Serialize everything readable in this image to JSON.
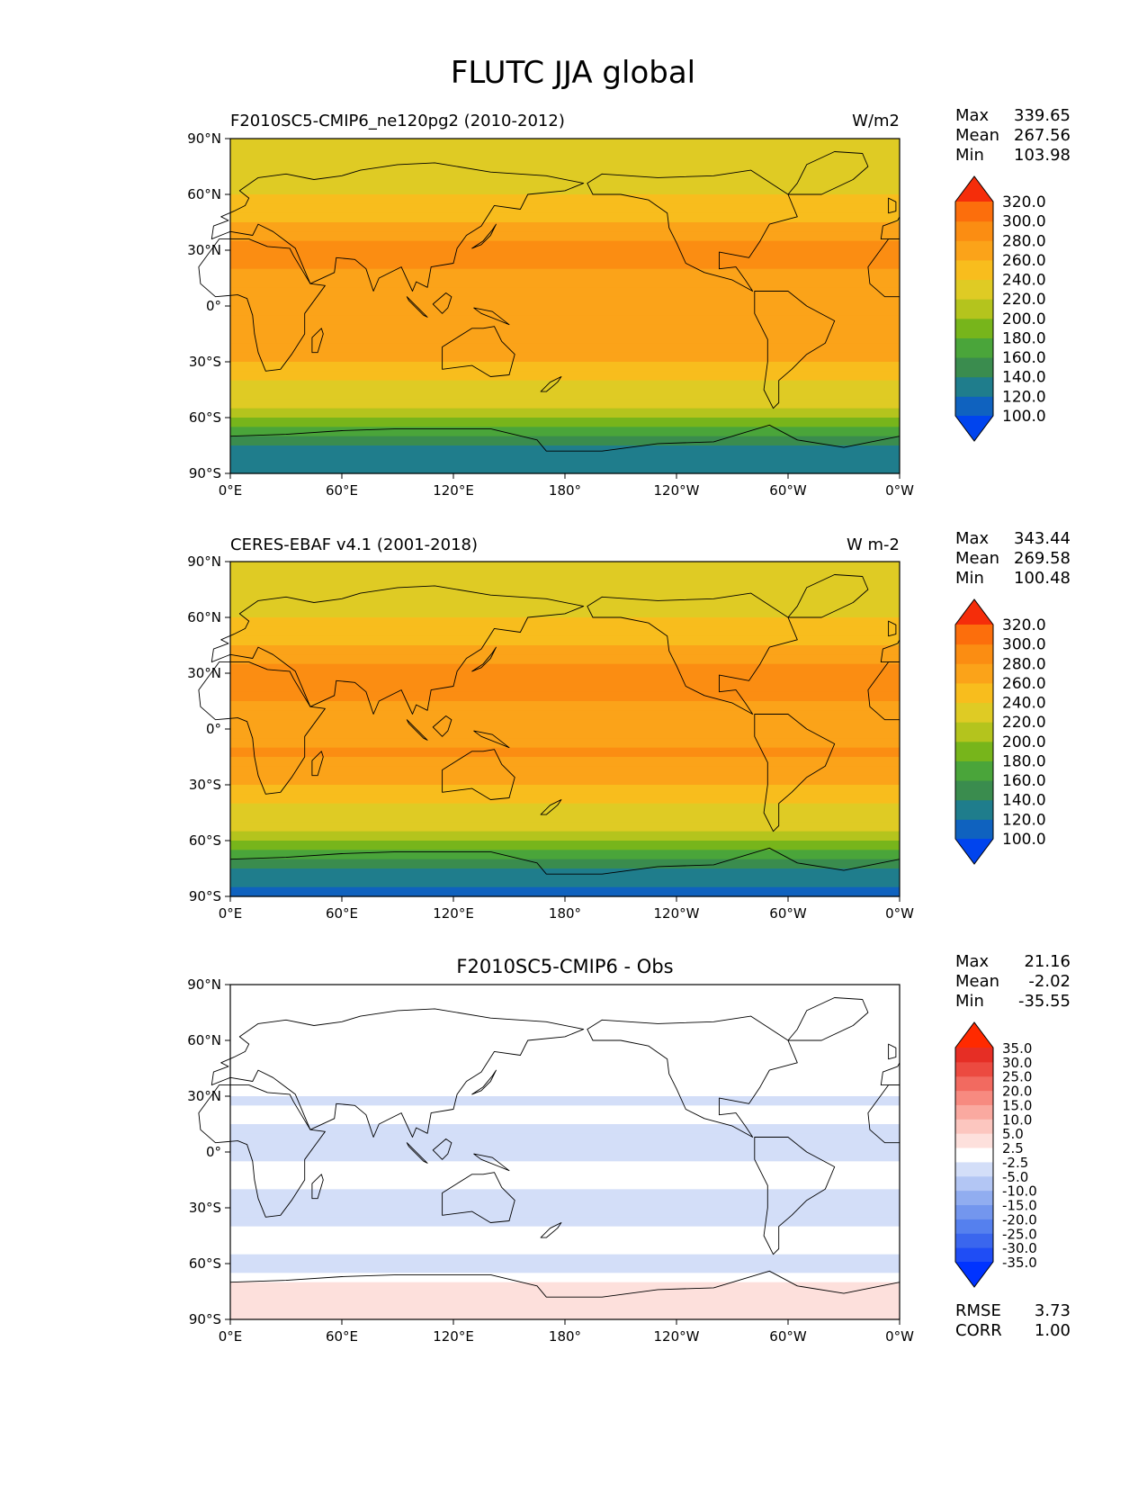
{
  "figure_title": "FLUTC JJA global",
  "chart_data": [
    {
      "type": "heatmap",
      "title_left": "F2010SC5-CMIP6_ne120pg2 (2010-2012)",
      "title_center": "",
      "units": "W/m2",
      "stats": {
        "labels": [
          "Max",
          "Mean",
          "Min"
        ],
        "values": [
          "339.65",
          "267.56",
          "103.98"
        ]
      },
      "xticks": [
        "0°E",
        "60°E",
        "120°E",
        "180°",
        "120°W",
        "60°W",
        "0°W"
      ],
      "yticks": [
        "90°N",
        "60°N",
        "30°N",
        "0°",
        "30°S",
        "60°S",
        "90°S"
      ],
      "xlim": [
        0,
        360
      ],
      "ylim": [
        -90,
        90
      ],
      "colorbar": {
        "levels": [
          100,
          120,
          140,
          160,
          180,
          200,
          220,
          240,
          260,
          280,
          300,
          320
        ],
        "tick_labels": [
          "100.0",
          "120.0",
          "140.0",
          "160.0",
          "180.0",
          "200.0",
          "220.0",
          "240.0",
          "260.0",
          "280.0",
          "300.0",
          "320.0"
        ],
        "colors": [
          "#0044ee",
          "#0f62bf",
          "#1f7d8c",
          "#3a8c4e",
          "#4aa53a",
          "#77b51b",
          "#b4c41d",
          "#dfcb24",
          "#f8bd1d",
          "#fba319",
          "#fb8d12",
          "#fc6e0c",
          "#f52d0a"
        ]
      },
      "zonal_profile": {
        "lat": [
          -90,
          -80,
          -70,
          -60,
          -50,
          -40,
          -30,
          -20,
          -10,
          0,
          10,
          20,
          30,
          40,
          50,
          60,
          70,
          80,
          90
        ],
        "value": [
          125,
          130,
          155,
          205,
          225,
          240,
          260,
          275,
          278,
          268,
          270,
          283,
          285,
          275,
          250,
          238,
          232,
          225,
          222
        ]
      }
    },
    {
      "type": "heatmap",
      "title_left": "CERES-EBAF v4.1 (2001-2018)",
      "title_center": "",
      "units": "W m-2",
      "stats": {
        "labels": [
          "Max",
          "Mean",
          "Min"
        ],
        "values": [
          "343.44",
          "269.58",
          "100.48"
        ]
      },
      "xticks": [
        "0°E",
        "60°E",
        "120°E",
        "180°",
        "120°W",
        "60°W",
        "0°W"
      ],
      "yticks": [
        "90°N",
        "60°N",
        "30°N",
        "0°",
        "30°S",
        "60°S",
        "90°S"
      ],
      "xlim": [
        0,
        360
      ],
      "ylim": [
        -90,
        90
      ],
      "colorbar": {
        "levels": [
          100,
          120,
          140,
          160,
          180,
          200,
          220,
          240,
          260,
          280,
          300,
          320
        ],
        "tick_labels": [
          "100.0",
          "120.0",
          "140.0",
          "160.0",
          "180.0",
          "200.0",
          "220.0",
          "240.0",
          "260.0",
          "280.0",
          "300.0",
          "320.0"
        ],
        "colors": [
          "#0044ee",
          "#0f62bf",
          "#1f7d8c",
          "#3a8c4e",
          "#4aa53a",
          "#77b51b",
          "#b4c41d",
          "#dfcb24",
          "#f8bd1d",
          "#fba319",
          "#fb8d12",
          "#fc6e0c",
          "#f52d0a"
        ]
      },
      "zonal_profile": {
        "lat": [
          -90,
          -80,
          -70,
          -60,
          -50,
          -40,
          -30,
          -20,
          -10,
          0,
          10,
          20,
          30,
          40,
          50,
          60,
          70,
          80,
          90
        ],
        "value": [
          115,
          125,
          150,
          205,
          228,
          242,
          262,
          277,
          282,
          272,
          273,
          285,
          287,
          277,
          252,
          240,
          233,
          226,
          222
        ]
      }
    },
    {
      "type": "heatmap",
      "title_left": "",
      "title_center": "F2010SC5-CMIP6 - Obs",
      "units": "",
      "stats": {
        "labels": [
          "Max",
          "Mean",
          "Min"
        ],
        "values": [
          "21.16",
          "-2.02",
          "-35.55"
        ]
      },
      "extra_stats": {
        "labels": [
          "RMSE",
          "CORR"
        ],
        "values": [
          "3.73",
          "1.00"
        ]
      },
      "xticks": [
        "0°E",
        "60°E",
        "120°E",
        "180°",
        "120°W",
        "60°W",
        "0°W"
      ],
      "yticks": [
        "90°N",
        "60°N",
        "30°N",
        "0°",
        "30°S",
        "60°S",
        "90°S"
      ],
      "xlim": [
        0,
        360
      ],
      "ylim": [
        -90,
        90
      ],
      "colorbar": {
        "levels": [
          -35,
          -30,
          -25,
          -20,
          -15,
          -10,
          -5,
          -2.5,
          2.5,
          5,
          10,
          15,
          20,
          25,
          30,
          35
        ],
        "tick_labels": [
          "-35.0",
          "-30.0",
          "-25.0",
          "-20.0",
          "-15.0",
          "-10.0",
          "-5.0",
          "-2.5",
          "2.5",
          "5.0",
          "10.0",
          "15.0",
          "20.0",
          "25.0",
          "30.0",
          "35.0"
        ],
        "colors": [
          "#0033ff",
          "#1f4df5",
          "#3a66ee",
          "#5580ee",
          "#7396ee",
          "#91adf0",
          "#b3c6f4",
          "#d3def8",
          "#ffffff",
          "#fde0dc",
          "#fcc6bf",
          "#faa9a0",
          "#f78a80",
          "#f26a60",
          "#ec4a40",
          "#e62e25",
          "#ff2a00"
        ]
      },
      "zonal_profile": {
        "lat": [
          -90,
          -80,
          -70,
          -60,
          -50,
          -40,
          -30,
          -20,
          -10,
          0,
          10,
          20,
          30,
          40,
          50,
          60,
          70,
          80,
          90
        ],
        "value": [
          4,
          5,
          2,
          -6,
          -1,
          -3,
          -4,
          -3,
          -1,
          -4,
          -3,
          -2,
          -3,
          -1,
          -1,
          0,
          -1,
          0,
          0
        ]
      }
    }
  ]
}
